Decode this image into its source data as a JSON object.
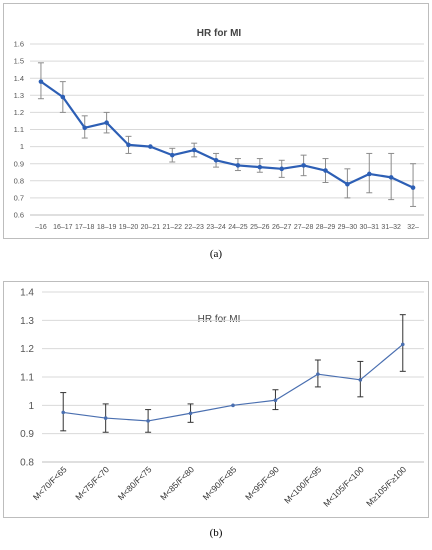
{
  "figure": {
    "caption_a": "(a)",
    "caption_b": "(b)"
  },
  "chart_data": [
    {
      "type": "line",
      "title": "HR for MI",
      "xlabel": "",
      "ylabel": "",
      "categories": [
        "–16",
        "16–17",
        "17–18",
        "18–19",
        "19–20",
        "20–21",
        "21–22",
        "22–23",
        "23–24",
        "24–25",
        "25–26",
        "26–27",
        "27–28",
        "28–29",
        "29–30",
        "30–31",
        "31–32",
        "32–"
      ],
      "values": [
        1.38,
        1.29,
        1.11,
        1.14,
        1.01,
        1.0,
        0.95,
        0.98,
        0.92,
        0.89,
        0.88,
        0.87,
        0.89,
        0.86,
        0.78,
        0.84,
        0.82,
        0.76
      ],
      "lower": [
        1.28,
        1.2,
        1.05,
        1.08,
        0.96,
        1.0,
        0.91,
        0.94,
        0.88,
        0.86,
        0.85,
        0.82,
        0.83,
        0.79,
        0.7,
        0.73,
        0.69,
        0.65
      ],
      "upper": [
        1.49,
        1.38,
        1.18,
        1.2,
        1.06,
        1.0,
        0.99,
        1.02,
        0.96,
        0.93,
        0.93,
        0.92,
        0.95,
        0.93,
        0.87,
        0.96,
        0.96,
        0.9
      ],
      "ylim": [
        0.6,
        1.6
      ],
      "yticks": [
        "0.6",
        "0.7",
        "0.8",
        "0.9",
        "1",
        "1.1",
        "1.2",
        "1.3",
        "1.4",
        "1.5",
        "1.6"
      ],
      "grid": true,
      "line_color": "#2d5fb5"
    },
    {
      "type": "line",
      "title": "HR for MI",
      "xlabel": "",
      "ylabel": "",
      "categories": [
        "M<70/F<65",
        "M<75/F<70",
        "M<80/F<75",
        "M<85/F<80",
        "M<90/F<85",
        "M<95/F<90",
        "M<100/F<95",
        "M<105/F<100",
        "M≥105/F≥100"
      ],
      "values": [
        0.975,
        0.955,
        0.945,
        0.972,
        1.0,
        1.018,
        1.11,
        1.09,
        1.215
      ],
      "lower": [
        0.91,
        0.905,
        0.905,
        0.94,
        1.0,
        0.985,
        1.065,
        1.03,
        1.12
      ],
      "upper": [
        1.045,
        1.005,
        0.985,
        1.005,
        1.0,
        1.055,
        1.16,
        1.155,
        1.32
      ],
      "ylim": [
        0.8,
        1.4
      ],
      "yticks": [
        "0.8",
        "0.9",
        "1",
        "1.1",
        "1.2",
        "1.3",
        "1.4"
      ],
      "grid": true,
      "line_color": "#4a6fb0"
    }
  ]
}
